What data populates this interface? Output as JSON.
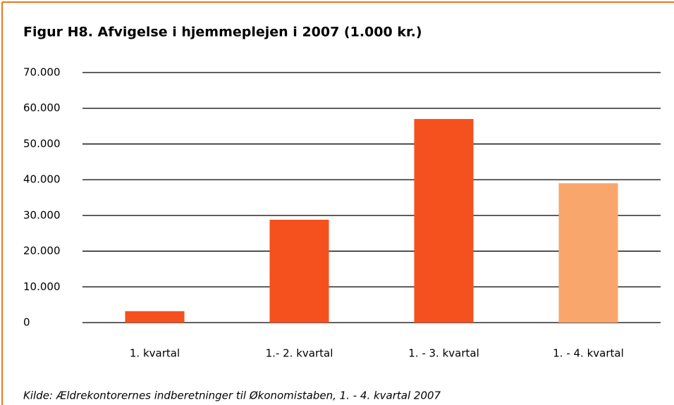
{
  "chart_data": {
    "type": "bar",
    "title": "Figur H8. Afvigelse i hjemmeplejen i 2007 (1.000 kr.)",
    "categories": [
      "1. kvartal",
      "1.- 2. kvartal",
      "1. - 3. kvartal",
      "1. - 4. kvartal"
    ],
    "values": [
      3200,
      28800,
      57000,
      39000
    ],
    "colors": [
      "#f4511e",
      "#f4511e",
      "#f4511e",
      "#f9a66c"
    ],
    "ylim": [
      0,
      70000
    ],
    "yticks": [
      0,
      {
        "value": 10000,
        "label": "10.000"
      },
      {
        "value": 20000,
        "label": "20.000"
      },
      {
        "value": 30000,
        "label": "30.000"
      },
      {
        "value": 40000,
        "label": "40.000"
      },
      {
        "value": 50000,
        "label": "50.000"
      },
      {
        "value": 60000,
        "label": "60.000"
      },
      {
        "value": 70000,
        "label": "70.000"
      }
    ],
    "grid": true,
    "source": "Kilde: Ældrekontorernes indberetninger til Økonomistaben, 1. - 4. kvartal 2007"
  }
}
